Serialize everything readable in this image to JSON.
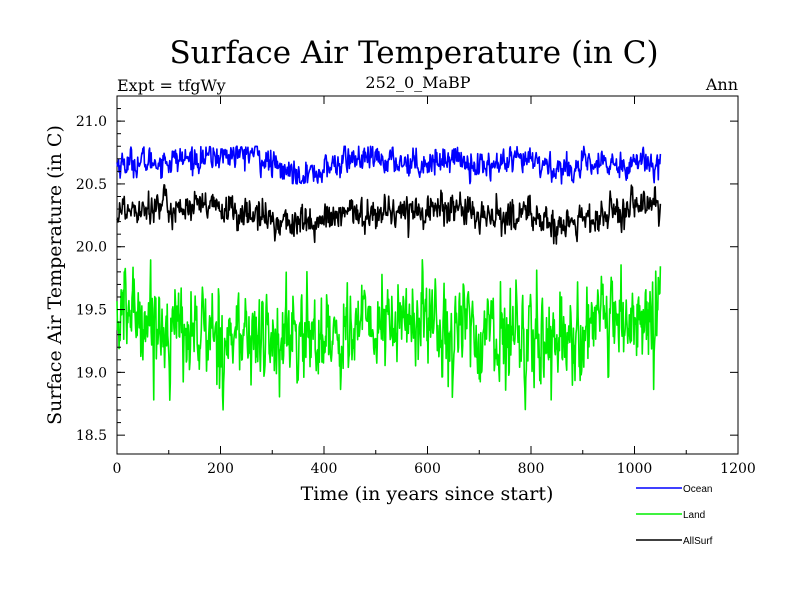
{
  "header": {
    "title": "Surface Air Temperature (in C)",
    "expt": "Expt = tfgWy",
    "subtitle": "252_0_MaBP",
    "period": "Ann"
  },
  "chart_data": {
    "type": "line",
    "title": "Surface Air Temperature (in C)",
    "xlabel": "Time (in years since start)",
    "ylabel": "Surface Air Temperature (in C)",
    "xlim": [
      0,
      1200
    ],
    "ylim": [
      18.35,
      21.2
    ],
    "xticks": [
      0,
      200,
      400,
      600,
      800,
      1000,
      1200
    ],
    "yticks": [
      18.5,
      19.0,
      19.5,
      20.0,
      20.5,
      21.0
    ],
    "xtick_labels": [
      "0",
      "200",
      "400",
      "600",
      "800",
      "1000",
      "1200"
    ],
    "ytick_labels": [
      "18.5",
      "19.0",
      "19.5",
      "20.0",
      "20.5",
      "21.0"
    ],
    "x_range": [
      0,
      1050
    ],
    "legend_position": "bottom-right",
    "series": [
      {
        "name": "Ocean",
        "color": "#0000ff",
        "mean": 20.67,
        "noise": 0.05,
        "min": 20.5,
        "max": 20.8,
        "anchors": [
          [
            0,
            20.66
          ],
          [
            150,
            20.7
          ],
          [
            260,
            20.75
          ],
          [
            320,
            20.6
          ],
          [
            380,
            20.58
          ],
          [
            450,
            20.7
          ],
          [
            600,
            20.67
          ],
          [
            650,
            20.72
          ],
          [
            700,
            20.64
          ],
          [
            800,
            20.68
          ],
          [
            850,
            20.62
          ],
          [
            1000,
            20.67
          ],
          [
            1050,
            20.7
          ]
        ]
      },
      {
        "name": "Land",
        "color": "#00ee00",
        "mean": 19.38,
        "noise": 0.17,
        "min": 18.7,
        "max": 19.95,
        "anchors": [
          [
            0,
            19.4
          ],
          [
            30,
            19.5
          ],
          [
            100,
            19.35
          ],
          [
            200,
            19.3
          ],
          [
            320,
            19.25
          ],
          [
            480,
            19.35
          ],
          [
            600,
            19.42
          ],
          [
            700,
            19.3
          ],
          [
            850,
            19.28
          ],
          [
            1000,
            19.38
          ],
          [
            1050,
            19.45
          ]
        ]
      },
      {
        "name": "AllSurf",
        "color": "#000000",
        "mean": 20.28,
        "noise": 0.06,
        "min": 19.95,
        "max": 20.5,
        "anchors": [
          [
            0,
            20.28
          ],
          [
            40,
            20.33
          ],
          [
            200,
            20.3
          ],
          [
            320,
            20.2
          ],
          [
            380,
            20.18
          ],
          [
            450,
            20.26
          ],
          [
            600,
            20.3
          ],
          [
            650,
            20.32
          ],
          [
            700,
            20.22
          ],
          [
            800,
            20.27
          ],
          [
            850,
            20.15
          ],
          [
            1000,
            20.3
          ],
          [
            1050,
            20.35
          ]
        ]
      }
    ]
  },
  "legend": {
    "items": [
      {
        "label": "Ocean",
        "color": "#0000ff"
      },
      {
        "label": "Land",
        "color": "#00ee00"
      },
      {
        "label": "AllSurf",
        "color": "#000000"
      }
    ]
  }
}
